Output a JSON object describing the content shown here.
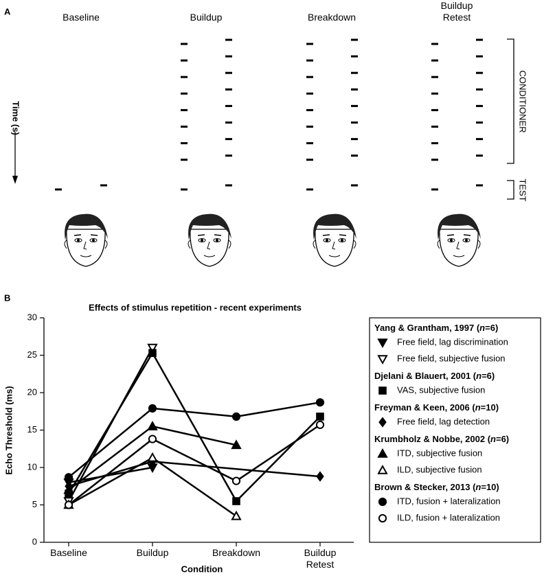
{
  "panel_a": {
    "label": "A",
    "time_label": "Time (s)",
    "conditioner_label": "CONDITIONER",
    "test_label": "TEST",
    "conditions": [
      "Baseline",
      "Buildup",
      "Breakdown",
      "Buildup\nRetest"
    ]
  },
  "panel_b_label": "B",
  "chart_data": {
    "type": "line",
    "title": "Effects of stimulus repetition - recent experiments",
    "x_label": "Condition",
    "y_label": "Echo Threshold (ms)",
    "categories": [
      "Baseline",
      "Buildup",
      "Breakdown",
      "Buildup\nRetest"
    ],
    "ylim": [
      0,
      30
    ],
    "yticks": [
      0,
      5,
      10,
      15,
      20,
      25,
      30
    ],
    "legend_groups": [
      {
        "title_parts": [
          "Yang & Grantham, 1997 (",
          "n",
          "=6)"
        ]
      },
      {
        "title_parts": [
          "Djelani & Blauert, 2001 (",
          "n",
          "=6)"
        ]
      },
      {
        "title_parts": [
          "Freyman & Keen, 2006 (",
          "n",
          "=10)"
        ]
      },
      {
        "title_parts": [
          "Krumbholz & Nobbe, 2002 (",
          "n",
          "=6)"
        ]
      },
      {
        "title_parts": [
          "Brown & Stecker, 2013 (",
          "n",
          "=10)"
        ]
      }
    ],
    "series": [
      {
        "name": "Free field, lag discrimination",
        "group": 0,
        "marker": "triangle-down",
        "filled": true,
        "color": "#000000",
        "values": [
          8,
          10,
          null,
          null
        ]
      },
      {
        "name": "Free field, subjective fusion",
        "group": 0,
        "marker": "triangle-down",
        "filled": false,
        "color": "#000000",
        "values": [
          5.5,
          26,
          null,
          null
        ]
      },
      {
        "name": "VAS, subjective fusion",
        "group": 1,
        "marker": "square",
        "filled": true,
        "color": "#000000",
        "values": [
          6.5,
          25.3,
          5.5,
          16.8
        ]
      },
      {
        "name": "Free field, lag detection",
        "group": 2,
        "marker": "diamond",
        "filled": true,
        "color": "#000000",
        "values": [
          7.5,
          10.8,
          null,
          8.8
        ]
      },
      {
        "name": "ITD, subjective fusion",
        "group": 3,
        "marker": "triangle-up",
        "filled": true,
        "color": "#000000",
        "values": [
          7,
          15.5,
          13,
          null
        ]
      },
      {
        "name": "ILD, subjective fusion",
        "group": 3,
        "marker": "triangle-up",
        "filled": false,
        "color": "#000000",
        "values": [
          5,
          11.3,
          3.5,
          null
        ]
      },
      {
        "name": "ITD, fusion + lateralization",
        "group": 4,
        "marker": "circle",
        "filled": true,
        "color": "#000000",
        "values": [
          8.7,
          17.9,
          16.8,
          18.7
        ]
      },
      {
        "name": "ILD, fusion + lateralization",
        "group": 4,
        "marker": "circle",
        "filled": false,
        "color": "#000000",
        "values": [
          5,
          13.8,
          8.2,
          15.7
        ]
      }
    ]
  }
}
